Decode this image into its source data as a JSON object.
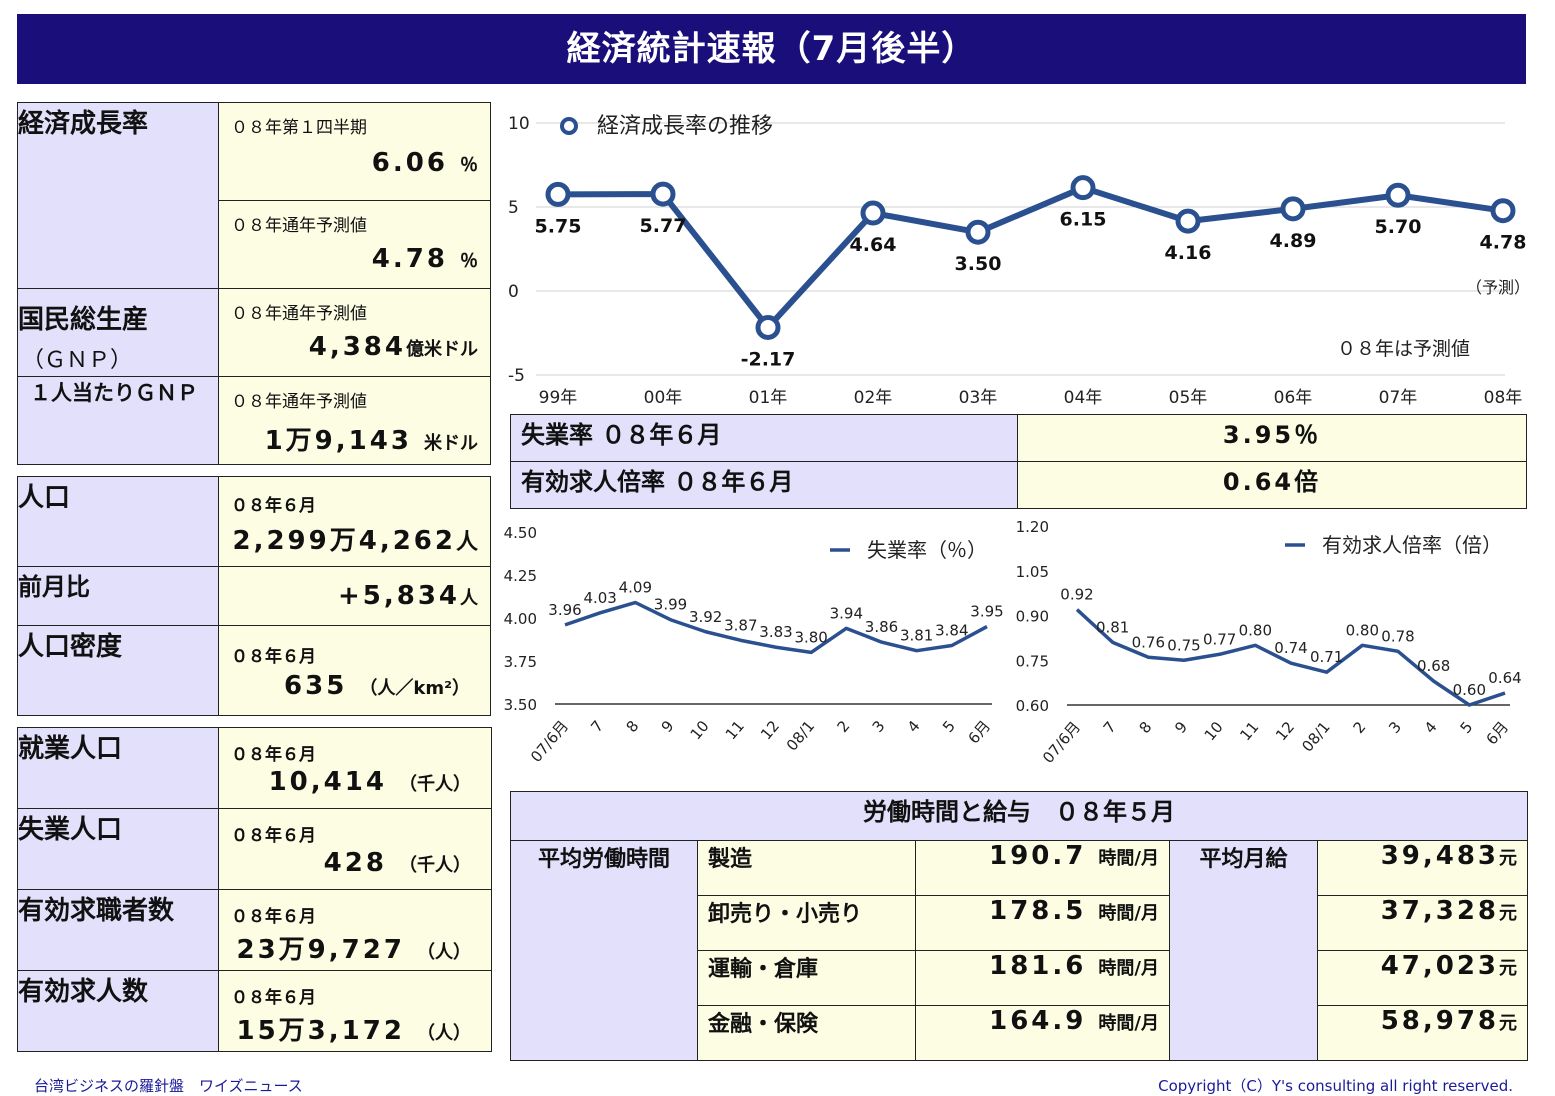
{
  "title": "経済統計速報（7月後半）",
  "gdp_block": {
    "growth_label": "経済成長率",
    "q1_label": "０８年第１四半期",
    "q1_value": "6.06",
    "q1_unit": "％",
    "fy_label": "０８年通年予測値",
    "fy_value": "4.78",
    "fy_unit": "％",
    "gnp_label": "国民総生産",
    "gnp_sub": "（ＧＮＰ）",
    "gnp_period": "０８年通年予測値",
    "gnp_value": "4,384",
    "gnp_unit": "億米ドル",
    "pc_label": "１人当たりＧＮＰ",
    "pc_period": "０８年通年予測値",
    "pc_value": "1万9,143",
    "pc_unit": "米ドル"
  },
  "pop_block": {
    "pop_label": "人口",
    "pop_period": "０８年６月",
    "pop_value": "2,299万4,262",
    "pop_unit": "人",
    "mom_label": "前月比",
    "mom_value": "+5,834",
    "mom_unit": "人",
    "density_label": "人口密度",
    "density_period": "０８年６月",
    "density_value": "635",
    "density_unit": "（人／km²）"
  },
  "labor_block": {
    "emp_label": "就業人口",
    "emp_period": "０８年６月",
    "emp_value": "10,414",
    "emp_unit": "（千人）",
    "unemp_label": "失業人口",
    "unemp_period": "０８年６月",
    "unemp_value": "428",
    "unemp_unit": "（千人）",
    "seekers_label": "有効求職者数",
    "seekers_period": "０８年６月",
    "seekers_value": "23万9,727",
    "seekers_unit": "（人）",
    "openings_label": "有効求人数",
    "openings_period": "０８年６月",
    "openings_value": "15万3,172",
    "openings_unit": "（人）"
  },
  "rates": {
    "unemp_label": "失業率 ０８年６月",
    "unemp_value": "3.95％",
    "ratio_label": "有効求人倍率 ０８年６月",
    "ratio_value": "0.64倍"
  },
  "wages": {
    "title": "労働時間と給与　０８年５月",
    "hours_label": "平均労働時間",
    "pay_label": "平均月給",
    "hours_unit": "時間/月",
    "pay_unit": "元",
    "rows": [
      {
        "cat": "製造",
        "hours": "190.7",
        "pay": "39,483"
      },
      {
        "cat": "卸売り・小売り",
        "hours": "178.5",
        "pay": "37,328"
      },
      {
        "cat": "運輸・倉庫",
        "hours": "181.6",
        "pay": "47,023"
      },
      {
        "cat": "金融・保険",
        "hours": "164.9",
        "pay": "58,978"
      }
    ]
  },
  "chart_data": [
    {
      "type": "line",
      "legend": "経済成長率の推移",
      "categories": [
        "99年",
        "00年",
        "01年",
        "02年",
        "03年",
        "04年",
        "05年",
        "06年",
        "07年",
        "08年"
      ],
      "values": [
        5.75,
        5.77,
        -2.17,
        4.64,
        3.5,
        6.15,
        4.16,
        4.89,
        5.7,
        4.78
      ],
      "value_labels": [
        "5.75",
        "5.77",
        "-2.17",
        "4.64",
        "3.50",
        "6.15",
        "4.16",
        "4.89",
        "5.70",
        "4.78"
      ],
      "ylim": [
        -5,
        10
      ],
      "yticks": [
        "-5",
        "0",
        "5",
        "10"
      ],
      "annotation": "０８年は予測値",
      "forecast_note": "（予測）",
      "color": "#2a5090",
      "grid": true,
      "legend_position": "top-left"
    },
    {
      "type": "line",
      "legend": "失業率（％）",
      "categories": [
        "07/6月",
        "7",
        "8",
        "9",
        "10",
        "11",
        "12",
        "08/1",
        "2",
        "3",
        "4",
        "5",
        "6月"
      ],
      "values": [
        3.96,
        4.03,
        4.09,
        3.99,
        3.92,
        3.87,
        3.83,
        3.8,
        3.94,
        3.86,
        3.81,
        3.84,
        3.95
      ],
      "value_labels": [
        "3.96",
        "4.03",
        "4.09",
        "3.99",
        "3.92",
        "3.87",
        "3.83",
        "3.80",
        "3.94",
        "3.86",
        "3.81",
        "3.84",
        "3.95"
      ],
      "ylim": [
        3.5,
        4.5
      ],
      "yticks": [
        "3.50",
        "3.75",
        "4.00",
        "4.25",
        "4.50"
      ],
      "color": "#2a5090",
      "legend_position": "top-right"
    },
    {
      "type": "line",
      "legend": "有効求人倍率（倍）",
      "categories": [
        "07/6月",
        "7",
        "8",
        "9",
        "10",
        "11",
        "12",
        "08/1",
        "2",
        "3",
        "4",
        "5",
        "6月"
      ],
      "values": [
        0.92,
        0.81,
        0.76,
        0.75,
        0.77,
        0.8,
        0.74,
        0.71,
        0.8,
        0.78,
        0.68,
        0.6,
        0.64
      ],
      "value_labels": [
        "0.92",
        "0.81",
        "0.76",
        "0.75",
        "0.77",
        "0.80",
        "0.74",
        "0.71",
        "0.80",
        "0.78",
        "0.68",
        "0.60",
        "0.64"
      ],
      "ylim": [
        0.6,
        1.2
      ],
      "yticks": [
        "0.60",
        "0.75",
        "0.90",
        "1.05",
        "1.20"
      ],
      "color": "#2a5090",
      "legend_position": "top-right"
    }
  ],
  "footer": {
    "left": "台湾ビジネスの羅針盤　ワイズニュース",
    "right": "Copyright（C）Y's consulting all right reserved."
  }
}
